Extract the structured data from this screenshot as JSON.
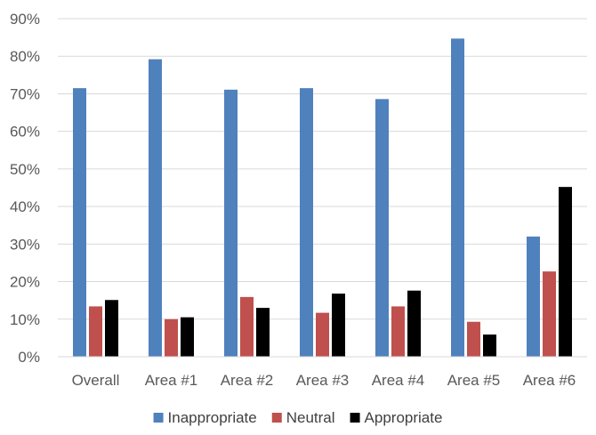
{
  "chart_data": {
    "type": "bar",
    "categories": [
      "Overall",
      "Area #1",
      "Area #2",
      "Area #3",
      "Area #4",
      "Area #5",
      "Area #6"
    ],
    "series": [
      {
        "name": "Inappropriate",
        "color": "#4F81BD",
        "values": [
          71.5,
          79.2,
          71.1,
          71.5,
          68.6,
          84.7,
          32.0
        ]
      },
      {
        "name": "Neutral",
        "color": "#C0504D",
        "values": [
          13.4,
          10.0,
          15.9,
          11.7,
          13.4,
          9.3,
          22.7
        ]
      },
      {
        "name": "Appropriate",
        "color": "#000000",
        "values": [
          15.1,
          10.5,
          13.0,
          16.8,
          17.6,
          5.9,
          45.2
        ]
      }
    ],
    "y_ticks": [
      "0%",
      "10%",
      "20%",
      "30%",
      "40%",
      "50%",
      "60%",
      "70%",
      "80%",
      "90%"
    ],
    "ylim": [
      0,
      90
    ],
    "y_unit": "%",
    "grid": true,
    "legend_position": "bottom",
    "title": "",
    "xlabel": "",
    "ylabel": ""
  }
}
